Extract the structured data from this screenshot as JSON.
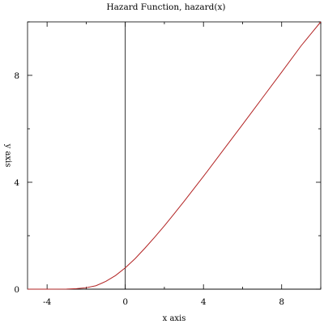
{
  "chart_data": {
    "type": "line",
    "title": "Hazard Function, hazard(x)",
    "xlabel": "x axis",
    "ylabel": "y axis",
    "xlim": [
      -5,
      10
    ],
    "ylim": [
      0,
      10
    ],
    "x_ticks": [
      -4,
      0,
      4,
      8
    ],
    "y_ticks": [
      0,
      4,
      8
    ],
    "x_tick_labels": [
      "-4",
      "0",
      "4",
      "8"
    ],
    "y_tick_labels": [
      "0",
      "4",
      "8"
    ],
    "grid": false,
    "series": [
      {
        "color": "#b22222",
        "x": [
          -5,
          -4,
          -3,
          -2.5,
          -2,
          -1.5,
          -1,
          -0.5,
          0,
          0.5,
          1,
          1.5,
          2,
          2.5,
          3,
          4,
          5,
          6,
          7,
          8,
          9,
          10
        ],
        "y": [
          0.0,
          0.0,
          0.004,
          0.018,
          0.055,
          0.13,
          0.29,
          0.51,
          0.8,
          1.14,
          1.53,
          1.94,
          2.37,
          2.82,
          3.28,
          4.22,
          5.19,
          6.16,
          7.14,
          8.12,
          9.11,
          10.1
        ]
      }
    ]
  }
}
